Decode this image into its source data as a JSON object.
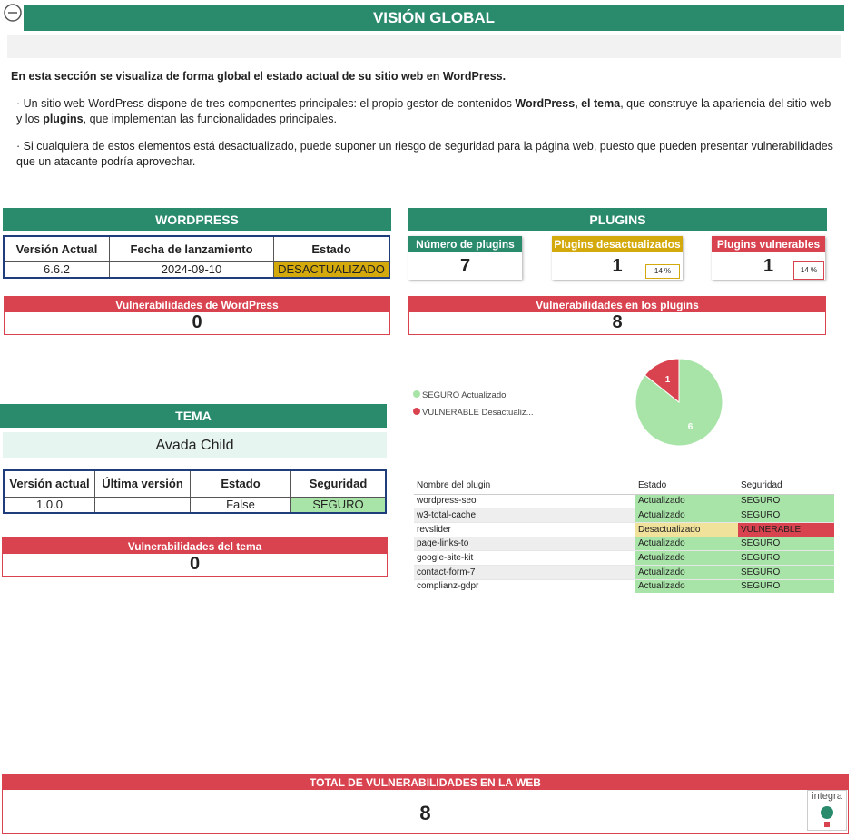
{
  "header": {
    "title": "VISIÓN GLOBAL"
  },
  "intro": {
    "lead": "En esta sección se visualiza de forma global el estado actual de su sitio web en WordPress.",
    "bullets": [
      [
        "Un sitio web WordPress dispone de tres componentes principales: el propio gestor de contenidos ",
        "WordPress",
        ", ",
        "el tema",
        ", que construye la apariencia del sitio web y los ",
        "plugins",
        ", que implementan las funcionalidades principales."
      ],
      [
        "Si cualquiera de estos elementos está desactualizado, puede suponer un riesgo de seguridad para la página web, puesto que pueden presentar vulnerabilidades que un atacante podría aprovechar."
      ]
    ]
  },
  "wordpress": {
    "title": "WORDPRESS",
    "headers": [
      "Versión Actual",
      "Fecha de lanzamiento",
      "Estado"
    ],
    "row": [
      "6.6.2",
      "2024-09-10",
      "DESACTUALIZADO"
    ],
    "vulnerabilities": {
      "label": "Vulnerabilidades de WordPress",
      "value": 0
    }
  },
  "plugins": {
    "title": "PLUGINS",
    "cards": [
      {
        "label": "Número de plugins",
        "value": 7
      },
      {
        "label": "Plugins desactualizados",
        "value": 1,
        "percent": "14 %"
      },
      {
        "label": "Plugins vulnerables",
        "value": 1,
        "percent": "14 %"
      }
    ],
    "vulnerabilities": {
      "label": "Vulnerabilidades en los plugins",
      "value": 8
    },
    "pie": {
      "labels": [
        "SEGURO Actualizado",
        "VULNERABLE Desactualiz..."
      ],
      "values": [
        6,
        1
      ],
      "colors": [
        "#a8e4a8",
        "#d9434f"
      ]
    },
    "table": {
      "headers": [
        "Nombre del plugin",
        "Estado",
        "Seguridad"
      ],
      "rows": [
        [
          "wordpress-seo",
          "Actualizado",
          "SEGURO"
        ],
        [
          "w3-total-cache",
          "Actualizado",
          "SEGURO"
        ],
        [
          "revslider",
          "Desactualizado",
          "VULNERABLE"
        ],
        [
          "page-links-to",
          "Actualizado",
          "SEGURO"
        ],
        [
          "google-site-kit",
          "Actualizado",
          "SEGURO"
        ],
        [
          "contact-form-7",
          "Actualizado",
          "SEGURO"
        ],
        [
          "complianz-gdpr",
          "Actualizado",
          "SEGURO"
        ]
      ],
      "row_colors": [
        [
          "#a8e4a8",
          "#a8e4a8"
        ],
        [
          "#a8e4a8",
          "#a8e4a8"
        ],
        [
          "#f1e29b",
          "#d9434f"
        ],
        [
          "#a8e4a8",
          "#a8e4a8"
        ],
        [
          "#a8e4a8",
          "#a8e4a8"
        ],
        [
          "#a8e4a8",
          "#a8e4a8"
        ],
        [
          "#a8e4a8",
          "#a8e4a8"
        ]
      ]
    }
  },
  "theme": {
    "title": "TEMA",
    "name": "Avada Child",
    "headers": [
      "Versión actual",
      "Última versión",
      "Estado",
      "Seguridad"
    ],
    "row": [
      "1.0.0",
      null,
      "False",
      "SEGURO"
    ],
    "vulnerabilities": {
      "label": "Vulnerabilidades del tema",
      "value": 0
    }
  },
  "total": {
    "label": "TOTAL DE VULNERABILIDADES EN LA WEB",
    "value": 8
  },
  "logo": {
    "text": "integra"
  }
}
